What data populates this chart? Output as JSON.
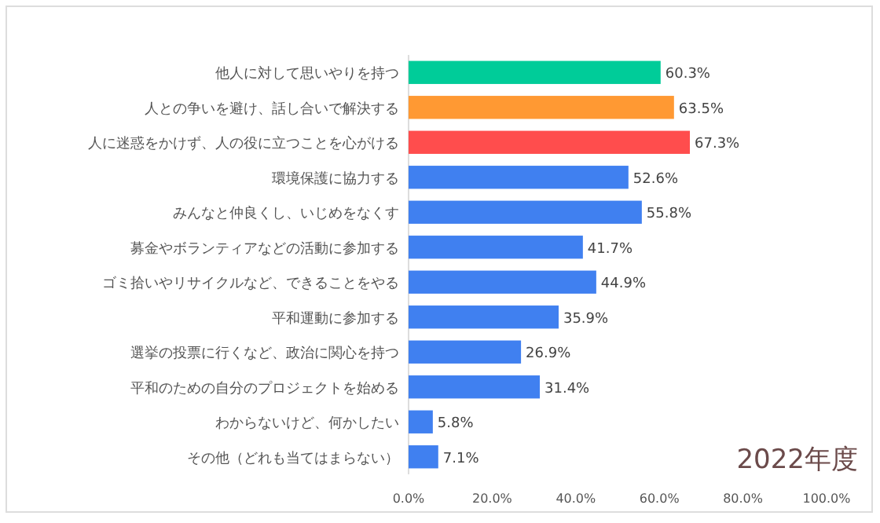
{
  "chart_data": {
    "type": "bar",
    "orientation": "horizontal",
    "categories": [
      "他人に対して思いやりを持つ",
      "人との争いを避け、話し合いで解決する",
      "人に迷惑をかけず、人の役に立つことを心がける",
      "環境保護に協力する",
      "みんなと仲良くし、いじめをなくす",
      "募金やボランティアなどの活動に参加する",
      "ゴミ拾いやリサイクルなど、できることをやる",
      "平和運動に参加する",
      "選挙の投票に行くなど、政治に関心を持つ",
      "平和のための自分のプロジェクトを始める",
      "わからないけど、何かしたい",
      "その他（どれも当てはまらない）"
    ],
    "values": [
      60.3,
      63.5,
      67.3,
      52.6,
      55.8,
      41.7,
      44.9,
      35.9,
      26.9,
      31.4,
      5.8,
      7.1
    ],
    "value_labels": [
      "60.3%",
      "63.5%",
      "67.3%",
      "52.6%",
      "55.8%",
      "41.7%",
      "44.9%",
      "35.9%",
      "26.9%",
      "31.4%",
      "5.8%",
      "7.1%"
    ],
    "colors": [
      "#00cc99",
      "#ff9933",
      "#ff4d4d",
      "#4080f0",
      "#4080f0",
      "#4080f0",
      "#4080f0",
      "#4080f0",
      "#4080f0",
      "#4080f0",
      "#4080f0",
      "#4080f0"
    ],
    "xlim": [
      0,
      100
    ],
    "xticks": [
      {
        "value": 0,
        "label": "0.0%"
      },
      {
        "value": 20,
        "label": "20.0%"
      },
      {
        "value": 40,
        "label": "40.0%"
      },
      {
        "value": 60,
        "label": "60.0%"
      },
      {
        "value": 80,
        "label": "80.0%"
      },
      {
        "value": 100,
        "label": "100.0%"
      }
    ],
    "annotations": [
      "2022年度"
    ]
  }
}
